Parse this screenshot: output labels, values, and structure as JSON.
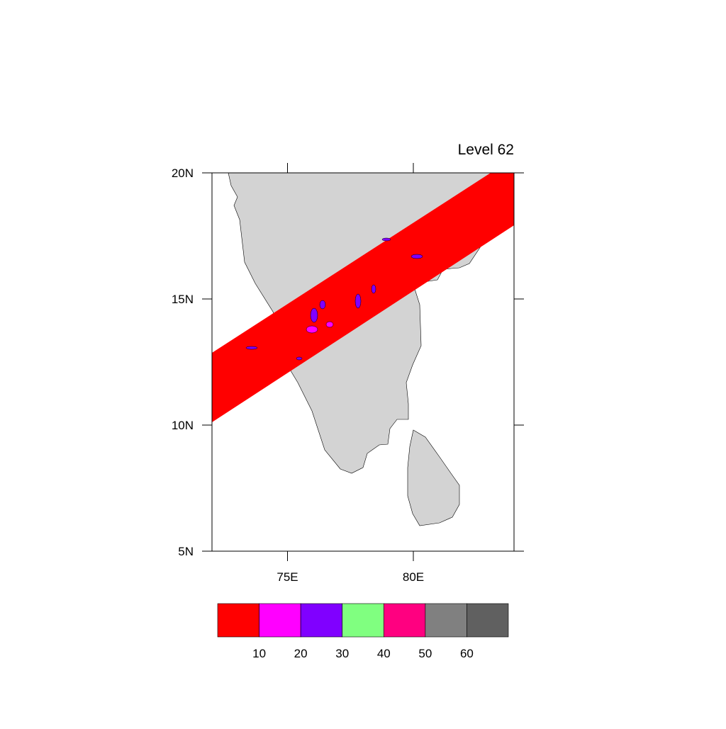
{
  "map": {
    "title": "Level 62",
    "lonlim": [
      72,
      84
    ],
    "latlim": [
      5,
      20
    ],
    "lonticks": [
      {
        "value": 75,
        "label": "75E"
      },
      {
        "value": 80,
        "label": "80E"
      }
    ],
    "latticks": [
      {
        "value": 5,
        "label": "5N"
      },
      {
        "value": 10,
        "label": "10N"
      },
      {
        "value": 15,
        "label": "15N"
      },
      {
        "value": 20,
        "label": "20N"
      }
    ]
  },
  "colorbar": {
    "colors": [
      "#ff0000",
      "#ff00ff",
      "#8000ff",
      "#80ff80",
      "#ff0080",
      "#808080",
      "#606060"
    ],
    "levels": [
      10,
      20,
      30,
      40,
      50,
      60
    ]
  }
}
